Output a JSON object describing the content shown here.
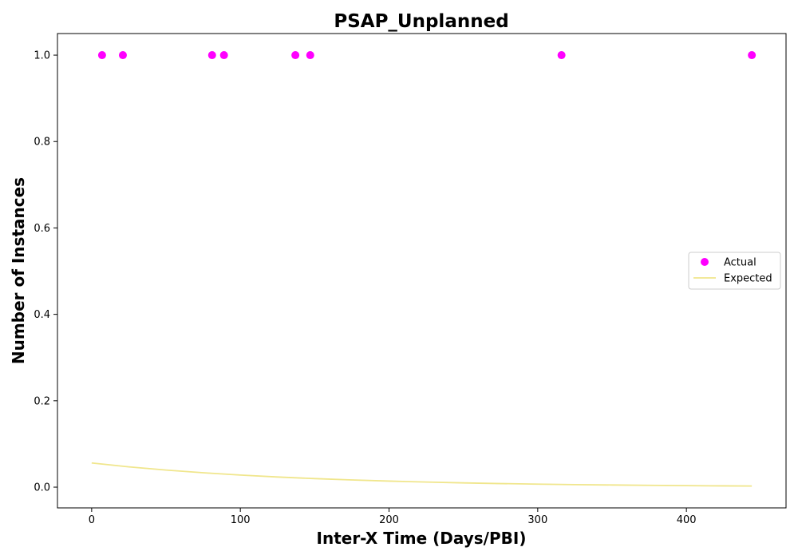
{
  "chart_data": {
    "type": "scatter",
    "title": "PSAP_Unplanned",
    "xlabel": "Inter-X Time (Days/PBI)",
    "ylabel": "Number of Instances",
    "xlim": [
      -23,
      467
    ],
    "ylim": [
      -0.048,
      1.05
    ],
    "xticks": [
      0,
      100,
      200,
      300,
      400
    ],
    "yticks": [
      0.0,
      0.2,
      0.4,
      0.6,
      0.8,
      1.0
    ],
    "grid": false,
    "legend_position": "center-right",
    "series": [
      {
        "name": "Actual",
        "kind": "scatter",
        "color": "#ff00ff",
        "x": [
          7,
          21,
          81,
          89,
          137,
          147,
          316,
          444
        ],
        "y": [
          1,
          1,
          1,
          1,
          1,
          1,
          1,
          1
        ]
      },
      {
        "name": "Expected",
        "kind": "line",
        "color": "#f0e68c",
        "x": [
          0,
          25,
          50,
          75,
          100,
          125,
          150,
          175,
          200,
          225,
          250,
          275,
          300,
          325,
          350,
          375,
          400,
          425,
          444
        ],
        "y": [
          0.056,
          0.047,
          0.0395,
          0.0333,
          0.028,
          0.0235,
          0.0198,
          0.0167,
          0.014,
          0.0118,
          0.0099,
          0.0083,
          0.007,
          0.0059,
          0.005,
          0.0042,
          0.0035,
          0.0029,
          0.0026
        ]
      }
    ]
  }
}
